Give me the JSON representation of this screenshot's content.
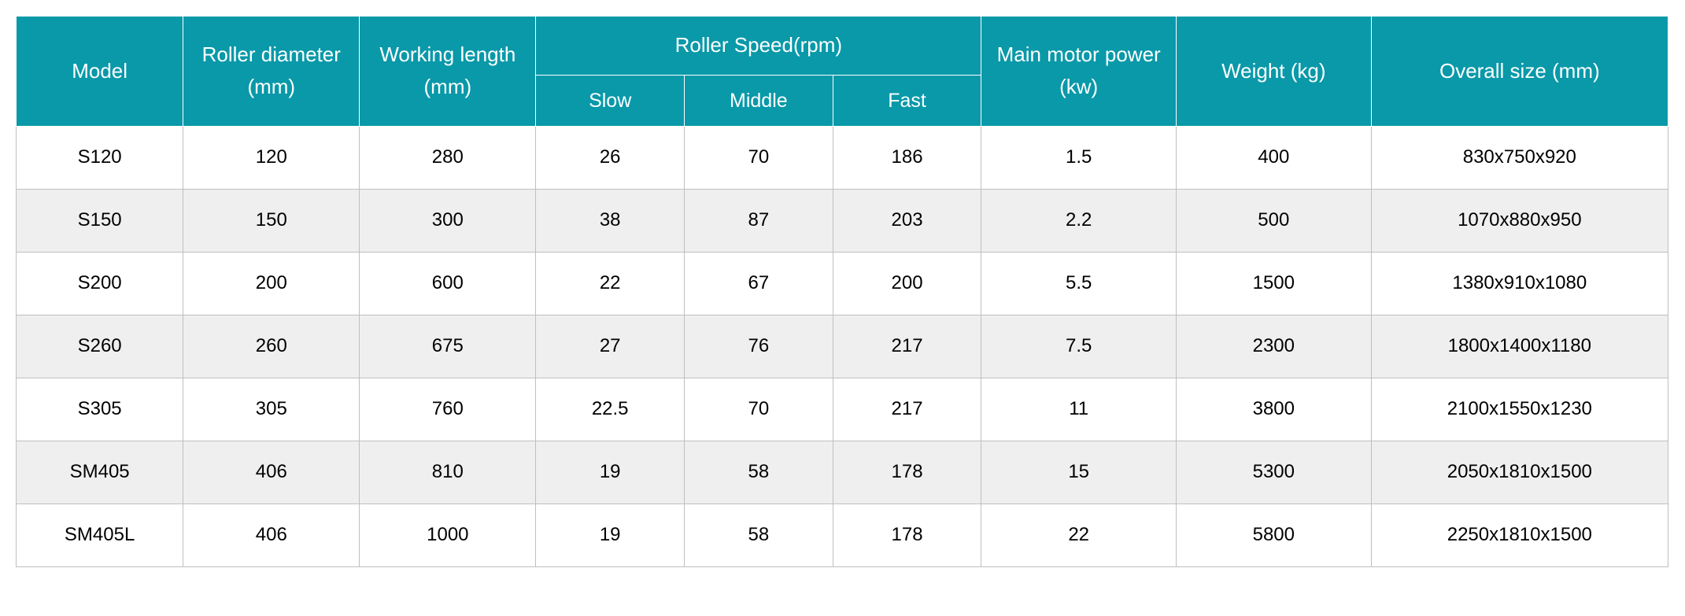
{
  "style": {
    "header_bg": "#0999a9",
    "header_border": "#ffffff",
    "body_border": "#bfbfbf",
    "row_odd_bg": "#ffffff",
    "row_even_bg": "#efefef",
    "header_text_color": "#ffffff",
    "body_text_color": "#000000",
    "header_fontsize": 26,
    "body_fontsize": 24
  },
  "headers": {
    "model": "Model",
    "roller_diameter": "Roller diameter (mm)",
    "working_length": "Working length (mm)",
    "roller_speed": "Roller Speed(rpm)",
    "slow": "Slow",
    "middle": "Middle",
    "fast": "Fast",
    "main_motor_power": "Main motor power (kw)",
    "weight": "Weight (kg)",
    "overall_size": "Overall size (mm)"
  },
  "rows": [
    {
      "model": "S120",
      "diameter": "120",
      "length": "280",
      "slow": "26",
      "middle": "70",
      "fast": "186",
      "power": "1.5",
      "weight": "400",
      "size": "830x750x920"
    },
    {
      "model": "S150",
      "diameter": "150",
      "length": "300",
      "slow": "38",
      "middle": "87",
      "fast": "203",
      "power": "2.2",
      "weight": "500",
      "size": "1070x880x950"
    },
    {
      "model": "S200",
      "diameter": "200",
      "length": "600",
      "slow": "22",
      "middle": "67",
      "fast": "200",
      "power": "5.5",
      "weight": "1500",
      "size": "1380x910x1080"
    },
    {
      "model": "S260",
      "diameter": "260",
      "length": "675",
      "slow": "27",
      "middle": "76",
      "fast": "217",
      "power": "7.5",
      "weight": "2300",
      "size": "1800x1400x1180"
    },
    {
      "model": "S305",
      "diameter": "305",
      "length": "760",
      "slow": "22.5",
      "middle": "70",
      "fast": "217",
      "power": "11",
      "weight": "3800",
      "size": "2100x1550x1230"
    },
    {
      "model": "SM405",
      "diameter": "406",
      "length": "810",
      "slow": "19",
      "middle": "58",
      "fast": "178",
      "power": "15",
      "weight": "5300",
      "size": "2050x1810x1500"
    },
    {
      "model": "SM405L",
      "diameter": "406",
      "length": "1000",
      "slow": "19",
      "middle": "58",
      "fast": "178",
      "power": "22",
      "weight": "5800",
      "size": "2250x1810x1500"
    }
  ]
}
